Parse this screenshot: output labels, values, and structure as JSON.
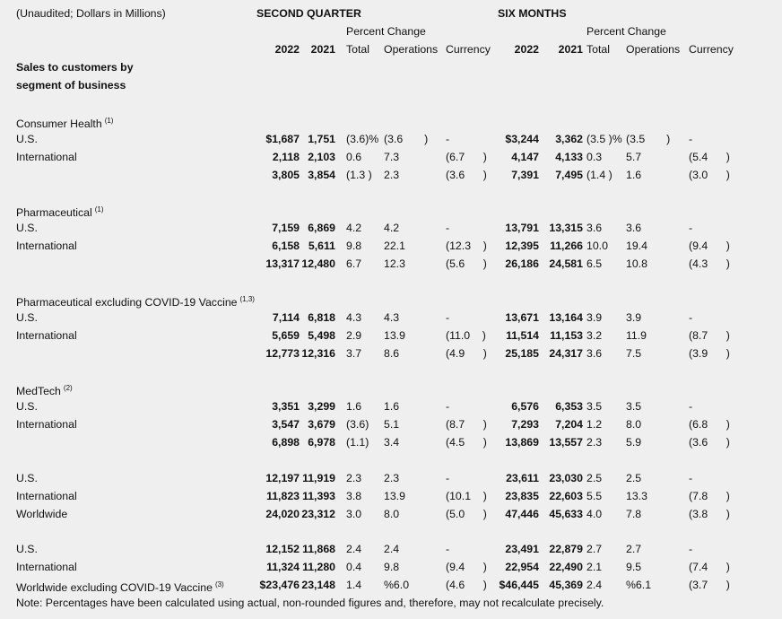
{
  "header": {
    "unit_note": "(Unaudited; Dollars in Millions)",
    "second_quarter": "SECOND QUARTER",
    "six_months": "SIX MONTHS",
    "percent_change": "Percent Change",
    "year_2022": "2022",
    "year_2021": "2021",
    "total": "Total",
    "operations": "Operations",
    "currency": "Currency",
    "section_title_1": "Sales to customers by",
    "section_title_2": "segment of business"
  },
  "rows": [
    {
      "type": "spacer"
    },
    {
      "label": "Consumer Health",
      "sup": "(1)"
    },
    {
      "label": "U.S.",
      "q22": "$1,687",
      "q21": "1,751",
      "qt": "(3.6)%",
      "qo": "(3.6       )",
      "qc": "-",
      "s22": "$3,244",
      "s21": "3,362",
      "st": "(3.5 )%",
      "so": "(3.5       )",
      "sc": "-"
    },
    {
      "label": "International",
      "q22": "2,118",
      "q21": "2,103",
      "qt": "0.6",
      "qo": "7.3",
      "qc": "(6.7      )",
      "s22": "4,147",
      "s21": "4,133",
      "st": "0.3",
      "so": "5.7",
      "sc": "(5.4      )"
    },
    {
      "label": "",
      "q22": "3,805",
      "q21": "3,854",
      "qt": "(1.3 )",
      "qo": "2.3",
      "qc": "(3.6      )",
      "s22": "7,391",
      "s21": "7,495",
      "st": "(1.4 )",
      "so": "1.6",
      "sc": "(3.0      )"
    },
    {
      "type": "spacer"
    },
    {
      "label": "Pharmaceutical",
      "sup": "(1)"
    },
    {
      "label": "U.S.",
      "q22": "7,159",
      "q21": "6,869",
      "qt": "4.2",
      "qo": "4.2",
      "qc": "-",
      "s22": "13,791",
      "s21": "13,315",
      "st": "3.6",
      "so": "3.6",
      "sc": "-"
    },
    {
      "label": "International",
      "q22": "6,158",
      "q21": "5,611",
      "qt": "9.8",
      "qo": "22.1",
      "qc": "(12.3    )",
      "s22": "12,395",
      "s21": "11,266",
      "st": "10.0",
      "so": "19.4",
      "sc": "(9.4      )"
    },
    {
      "label": "",
      "q22": "13,317",
      "q21": "12,480",
      "qt": "6.7",
      "qo": "12.3",
      "qc": "(5.6      )",
      "s22": "26,186",
      "s21": "24,581",
      "st": "6.5",
      "so": "10.8",
      "sc": "(4.3      )"
    },
    {
      "type": "spacer"
    },
    {
      "label": "Pharmaceutical excluding COVID-19 Vaccine",
      "sup": "(1,3)"
    },
    {
      "label": "U.S.",
      "q22": "7,114",
      "q21": "6,818",
      "qt": "4.3",
      "qo": "4.3",
      "qc": "-",
      "s22": "13,671",
      "s21": "13,164",
      "st": "3.9",
      "so": "3.9",
      "sc": "-"
    },
    {
      "label": "International",
      "q22": "5,659",
      "q21": "5,498",
      "qt": "2.9",
      "qo": "13.9",
      "qc": "(11.0    )",
      "s22": "11,514",
      "s21": "11,153",
      "st": "3.2",
      "so": "11.9",
      "sc": "(8.7      )"
    },
    {
      "label": "",
      "q22": "12,773",
      "q21": "12,316",
      "qt": "3.7",
      "qo": "8.6",
      "qc": "(4.9      )",
      "s22": "25,185",
      "s21": "24,317",
      "st": "3.6",
      "so": "7.5",
      "sc": "(3.9      )"
    },
    {
      "type": "spacer"
    },
    {
      "label": "MedTech",
      "sup": "(2)"
    },
    {
      "label": "U.S.",
      "q22": "3,351",
      "q21": "3,299",
      "qt": "1.6",
      "qo": "1.6",
      "qc": "-",
      "s22": "6,576",
      "s21": "6,353",
      "st": "3.5",
      "so": "3.5",
      "sc": "-"
    },
    {
      "label": "International",
      "q22": "3,547",
      "q21": "3,679",
      "qt": "(3.6)",
      "qo": "5.1",
      "qc": "(8.7      )",
      "s22": "7,293",
      "s21": "7,204",
      "st": "1.2",
      "so": "8.0",
      "sc": "(6.8      )"
    },
    {
      "label": "",
      "q22": "6,898",
      "q21": "6,978",
      "qt": "(1.1)",
      "qo": "3.4",
      "qc": "(4.5      )",
      "s22": "13,869",
      "s21": "13,557",
      "st": "2.3",
      "so": "5.9",
      "sc": "(3.6      )"
    },
    {
      "type": "spacer"
    },
    {
      "label": "U.S.",
      "q22": "12,197",
      "q21": "11,919",
      "qt": "2.3",
      "qo": "2.3",
      "qc": "-",
      "s22": "23,611",
      "s21": "23,030",
      "st": "2.5",
      "so": "2.5",
      "sc": "-"
    },
    {
      "label": "International",
      "q22": "11,823",
      "q21": "11,393",
      "qt": "3.8",
      "qo": "13.9",
      "qc": "(10.1    )",
      "s22": "23,835",
      "s21": "22,603",
      "st": "5.5",
      "so": "13.3",
      "sc": "(7.8      )"
    },
    {
      "label": "Worldwide",
      "q22": "24,020",
      "q21": "23,312",
      "qt": "3.0",
      "qo": "8.0",
      "qc": "(5.0      )",
      "s22": "47,446",
      "s21": "45,633",
      "st": "4.0",
      "so": "7.8",
      "sc": "(3.8      )"
    },
    {
      "type": "spacer"
    },
    {
      "label": "U.S.",
      "q22": "12,152",
      "q21": "11,868",
      "qt": "2.4",
      "qo": "2.4",
      "qc": "-",
      "s22": "23,491",
      "s21": "22,879",
      "st": "2.7",
      "so": "2.7",
      "sc": "-"
    },
    {
      "label": "International",
      "q22": "11,324",
      "q21": "11,280",
      "qt": "0.4",
      "qo": "9.8",
      "qc": "(9.4      )",
      "s22": "22,954",
      "s21": "22,490",
      "st": "2.1",
      "so": "9.5",
      "sc": "(7.4      )"
    },
    {
      "label": "Worldwide excluding COVID-19 Vaccine",
      "sup": "(3)",
      "q22": "$23,476",
      "q21": "23,148",
      "qt": "1.4",
      "qo": "%6.0",
      "qc": "(4.6      )",
      "s22": "$46,445",
      "s21": "45,369",
      "st": "2.4",
      "so": "%6.1",
      "sc": "(3.7      )"
    }
  ],
  "note": "Note: Percentages have been calculated using actual, non-rounded figures and, therefore, may not recalculate precisely."
}
